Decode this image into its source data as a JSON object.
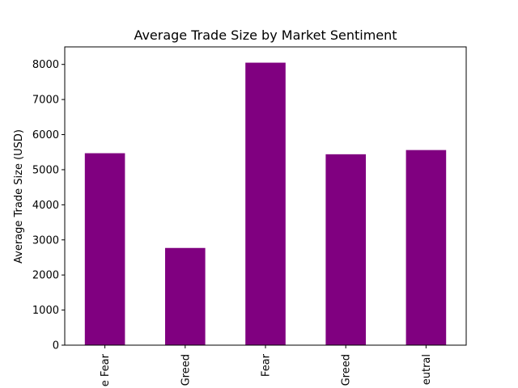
{
  "chart_data": {
    "type": "bar",
    "title": "Average Trade Size by Market Sentiment",
    "xlabel": "",
    "ylabel": "Average Trade Size (USD)",
    "categories": [
      "e Fear",
      "Greed",
      "Fear",
      "Greed",
      "eutral"
    ],
    "values": [
      5470,
      2770,
      8050,
      5440,
      5560
    ],
    "ylim": [
      0,
      8500
    ],
    "yticks": [
      0,
      1000,
      2000,
      3000,
      4000,
      5000,
      6000,
      7000,
      8000
    ],
    "bar_color": "#800080",
    "grid": false,
    "legend": "none"
  }
}
